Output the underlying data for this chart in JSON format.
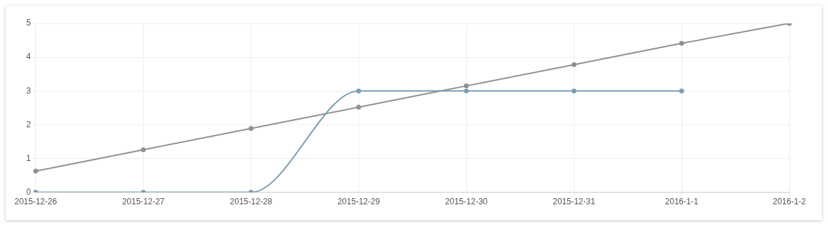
{
  "chart_data": {
    "type": "line",
    "categories": [
      "2015-12-26",
      "2015-12-27",
      "2015-12-28",
      "2015-12-29",
      "2015-12-30",
      "2015-12-31",
      "2016-1-1",
      "2016-1-2"
    ],
    "series": [
      {
        "color": "#7a9fb2",
        "values": [
          0,
          0,
          0,
          3,
          3,
          3,
          3,
          null
        ]
      },
      {
        "color": "#909090",
        "values": [
          0.63,
          1.26,
          1.89,
          2.52,
          3.15,
          3.78,
          4.41,
          5.0
        ]
      }
    ],
    "ylim": [
      0,
      5
    ],
    "yticks": [
      0,
      1,
      2,
      3,
      4,
      5
    ],
    "grid": true,
    "legend": false,
    "marker": "circle",
    "line_style": "solid"
  }
}
